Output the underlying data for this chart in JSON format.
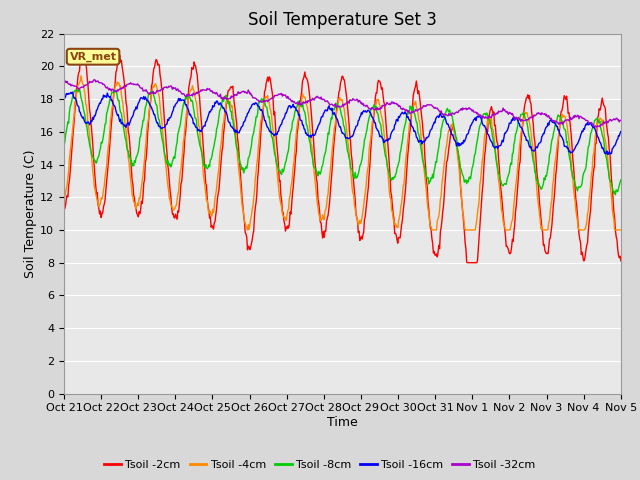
{
  "title": "Soil Temperature Set 3",
  "xlabel": "Time",
  "ylabel": "Soil Temperature (C)",
  "ylim": [
    0,
    22
  ],
  "yticks": [
    0,
    2,
    4,
    6,
    8,
    10,
    12,
    14,
    16,
    18,
    20,
    22
  ],
  "xtick_labels": [
    "Oct 21",
    "Oct 22",
    "Oct 23",
    "Oct 24",
    "Oct 25",
    "Oct 26",
    "Oct 27",
    "Oct 28",
    "Oct 29",
    "Oct 30",
    "Oct 31",
    "Nov 1",
    "Nov 2",
    "Nov 3",
    "Nov 4",
    "Nov 5"
  ],
  "series_colors": [
    "#ff0000",
    "#ff8800",
    "#00cc00",
    "#0000ff",
    "#aa00cc"
  ],
  "series_labels": [
    "Tsoil -2cm",
    "Tsoil -4cm",
    "Tsoil -8cm",
    "Tsoil -16cm",
    "Tsoil -32cm"
  ],
  "fig_bg_color": "#d8d8d8",
  "plot_bg_color": "#e8e8e8",
  "grid_color": "#ffffff",
  "annotation_text": "VR_met",
  "annotation_box_color": "#ffff99",
  "annotation_border_color": "#8b4513",
  "title_fontsize": 12,
  "axis_label_fontsize": 9,
  "tick_fontsize": 8,
  "legend_fontsize": 8
}
